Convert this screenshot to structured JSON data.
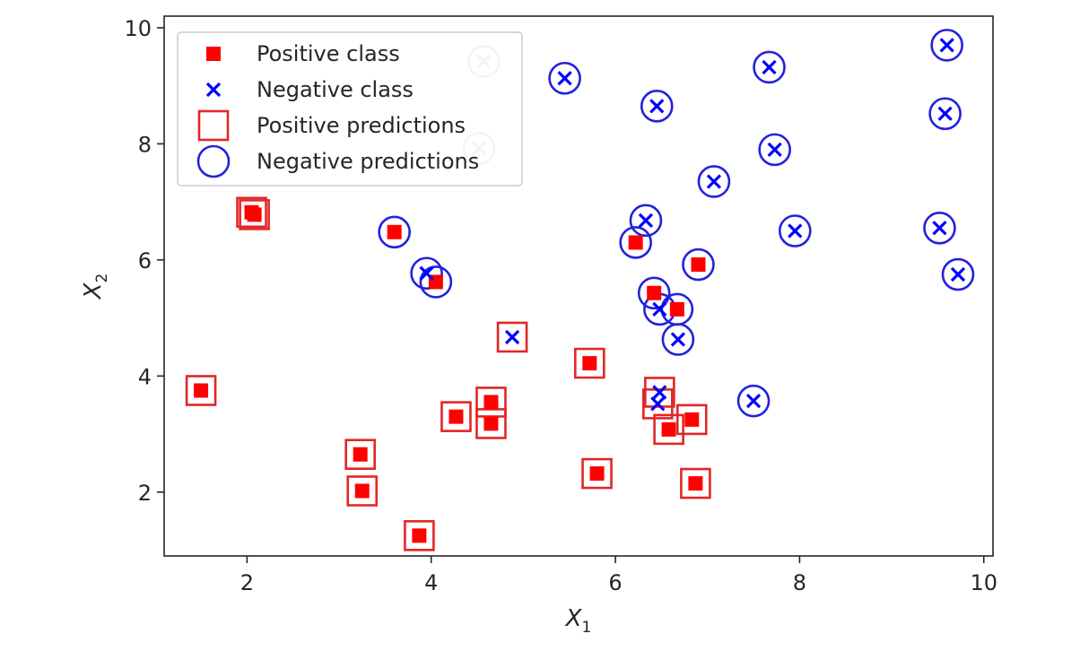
{
  "chart_data": {
    "type": "scatter",
    "title": "",
    "xlabel": "X",
    "xlabel_sub": "1",
    "ylabel": "X",
    "ylabel_sub": "2",
    "xlim": [
      1.1,
      10.1
    ],
    "ylim": [
      0.9,
      10.2
    ],
    "xticks": [
      2,
      4,
      6,
      8,
      10
    ],
    "yticks": [
      2,
      4,
      6,
      8,
      10
    ],
    "grid": false,
    "legend_position": "top-left",
    "colors": {
      "positive": "#ff0000",
      "negative": "#0000ff",
      "positive_prediction": "#e32626",
      "negative_prediction": "#2222dd",
      "faded": "#c8c8c8"
    },
    "legend": [
      {
        "label": "Positive class",
        "marker": "filled-square"
      },
      {
        "label": "Negative class",
        "marker": "x"
      },
      {
        "label": "Positive predictions",
        "marker": "open-square"
      },
      {
        "label": "Negative predictions",
        "marker": "open-circle"
      }
    ],
    "series": [
      {
        "name": "Positive class",
        "points": [
          {
            "x": 1.5,
            "y": 3.75,
            "pred": "positive"
          },
          {
            "x": 2.05,
            "y": 6.82,
            "pred": "positive"
          },
          {
            "x": 2.08,
            "y": 6.78,
            "pred": "positive"
          },
          {
            "x": 3.23,
            "y": 2.65,
            "pred": "positive"
          },
          {
            "x": 3.25,
            "y": 2.02,
            "pred": "positive"
          },
          {
            "x": 3.6,
            "y": 6.48,
            "pred": "negative"
          },
          {
            "x": 3.87,
            "y": 1.25,
            "pred": "positive"
          },
          {
            "x": 4.05,
            "y": 5.62,
            "pred": "negative"
          },
          {
            "x": 4.27,
            "y": 3.3,
            "pred": "positive"
          },
          {
            "x": 4.65,
            "y": 3.55,
            "pred": "positive"
          },
          {
            "x": 4.65,
            "y": 3.18,
            "pred": "positive"
          },
          {
            "x": 5.72,
            "y": 4.22,
            "pred": "positive"
          },
          {
            "x": 5.8,
            "y": 2.32,
            "pred": "positive"
          },
          {
            "x": 6.22,
            "y": 6.3,
            "pred": "negative"
          },
          {
            "x": 6.42,
            "y": 5.43,
            "pred": "negative"
          },
          {
            "x": 6.58,
            "y": 3.08,
            "pred": "positive"
          },
          {
            "x": 6.67,
            "y": 5.15,
            "pred": "negative"
          },
          {
            "x": 6.83,
            "y": 3.25,
            "pred": "positive"
          },
          {
            "x": 6.87,
            "y": 2.15,
            "pred": "positive"
          },
          {
            "x": 6.9,
            "y": 5.92,
            "pred": "negative"
          }
        ]
      },
      {
        "name": "Negative class",
        "points": [
          {
            "x": 3.95,
            "y": 5.77,
            "pred": "negative"
          },
          {
            "x": 4.52,
            "y": 7.92,
            "pred": "negative",
            "faded": true
          },
          {
            "x": 4.57,
            "y": 9.42,
            "pred": "negative",
            "faded": true
          },
          {
            "x": 4.88,
            "y": 4.67,
            "pred": "positive"
          },
          {
            "x": 5.45,
            "y": 9.13,
            "pred": "negative"
          },
          {
            "x": 6.33,
            "y": 6.68,
            "pred": "negative"
          },
          {
            "x": 6.45,
            "y": 8.65,
            "pred": "negative"
          },
          {
            "x": 6.48,
            "y": 3.72,
            "pred": "positive"
          },
          {
            "x": 6.46,
            "y": 3.52,
            "pred": "positive"
          },
          {
            "x": 6.48,
            "y": 5.15,
            "pred": "negative"
          },
          {
            "x": 6.68,
            "y": 4.63,
            "pred": "negative"
          },
          {
            "x": 7.07,
            "y": 7.35,
            "pred": "negative"
          },
          {
            "x": 7.5,
            "y": 3.57,
            "pred": "negative"
          },
          {
            "x": 7.67,
            "y": 9.32,
            "pred": "negative"
          },
          {
            "x": 7.73,
            "y": 7.9,
            "pred": "negative"
          },
          {
            "x": 7.95,
            "y": 6.5,
            "pred": "negative"
          },
          {
            "x": 9.52,
            "y": 6.55,
            "pred": "negative"
          },
          {
            "x": 9.58,
            "y": 8.52,
            "pred": "negative"
          },
          {
            "x": 9.6,
            "y": 9.7,
            "pred": "negative"
          },
          {
            "x": 9.72,
            "y": 5.75,
            "pred": "negative"
          }
        ]
      }
    ]
  }
}
